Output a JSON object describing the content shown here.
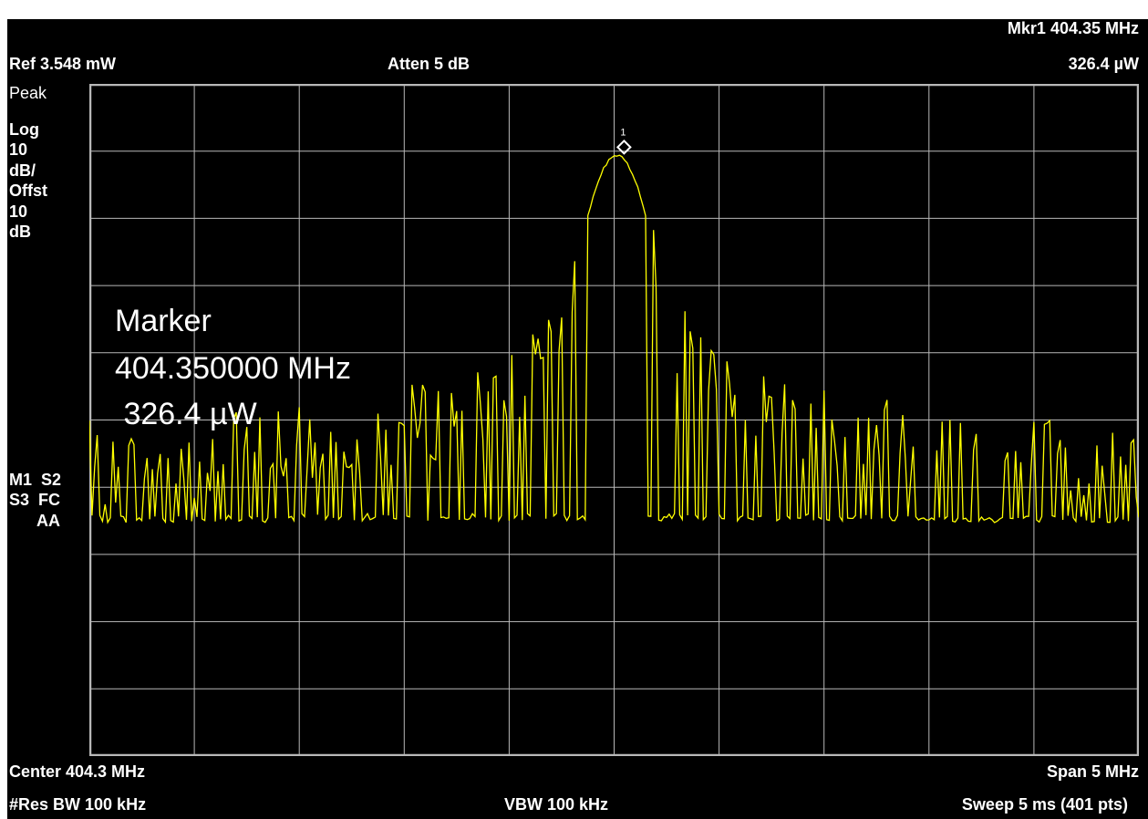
{
  "header": {
    "marker_readout_freq": "Mkr1  404.35 MHz",
    "ref_level": "Ref 3.548 mW",
    "attenuation": "Atten 5 dB",
    "marker_readout_amp": "326.4 µW"
  },
  "side_labels": {
    "detector": "Peak",
    "scale_type": "Log",
    "scale_value": "10",
    "scale_unit": "dB/",
    "offset_label": "Offst",
    "offset_value": "10",
    "offset_unit": "dB",
    "status_1": "M1  S2",
    "status_2": "S3  FC",
    "status_3": "AA"
  },
  "marker_panel": {
    "title": "Marker",
    "frequency": "404.350000 MHz",
    "amplitude": " 326.4 µW"
  },
  "marker_symbol_label": "1",
  "footer": {
    "center": "Center 404.3 MHz",
    "span": "Span 5 MHz",
    "res_bw": "#Res BW 100 kHz",
    "vbw": "VBW 100 kHz",
    "sweep": "Sweep 5 ms (401 pts)"
  },
  "colors": {
    "background": "#000000",
    "graticule": "#b8b8b8",
    "trace": "#ffff00",
    "text": "#ffffff"
  },
  "chart_data": {
    "type": "line",
    "x_center_mhz": 404.3,
    "x_span_mhz": 5,
    "points": 401,
    "marker": {
      "freq_mhz": 404.35,
      "amp": "326.4 µW"
    },
    "peak_level_div_from_top": 1.05,
    "noise_floor_div_from_top": 6.5
  }
}
